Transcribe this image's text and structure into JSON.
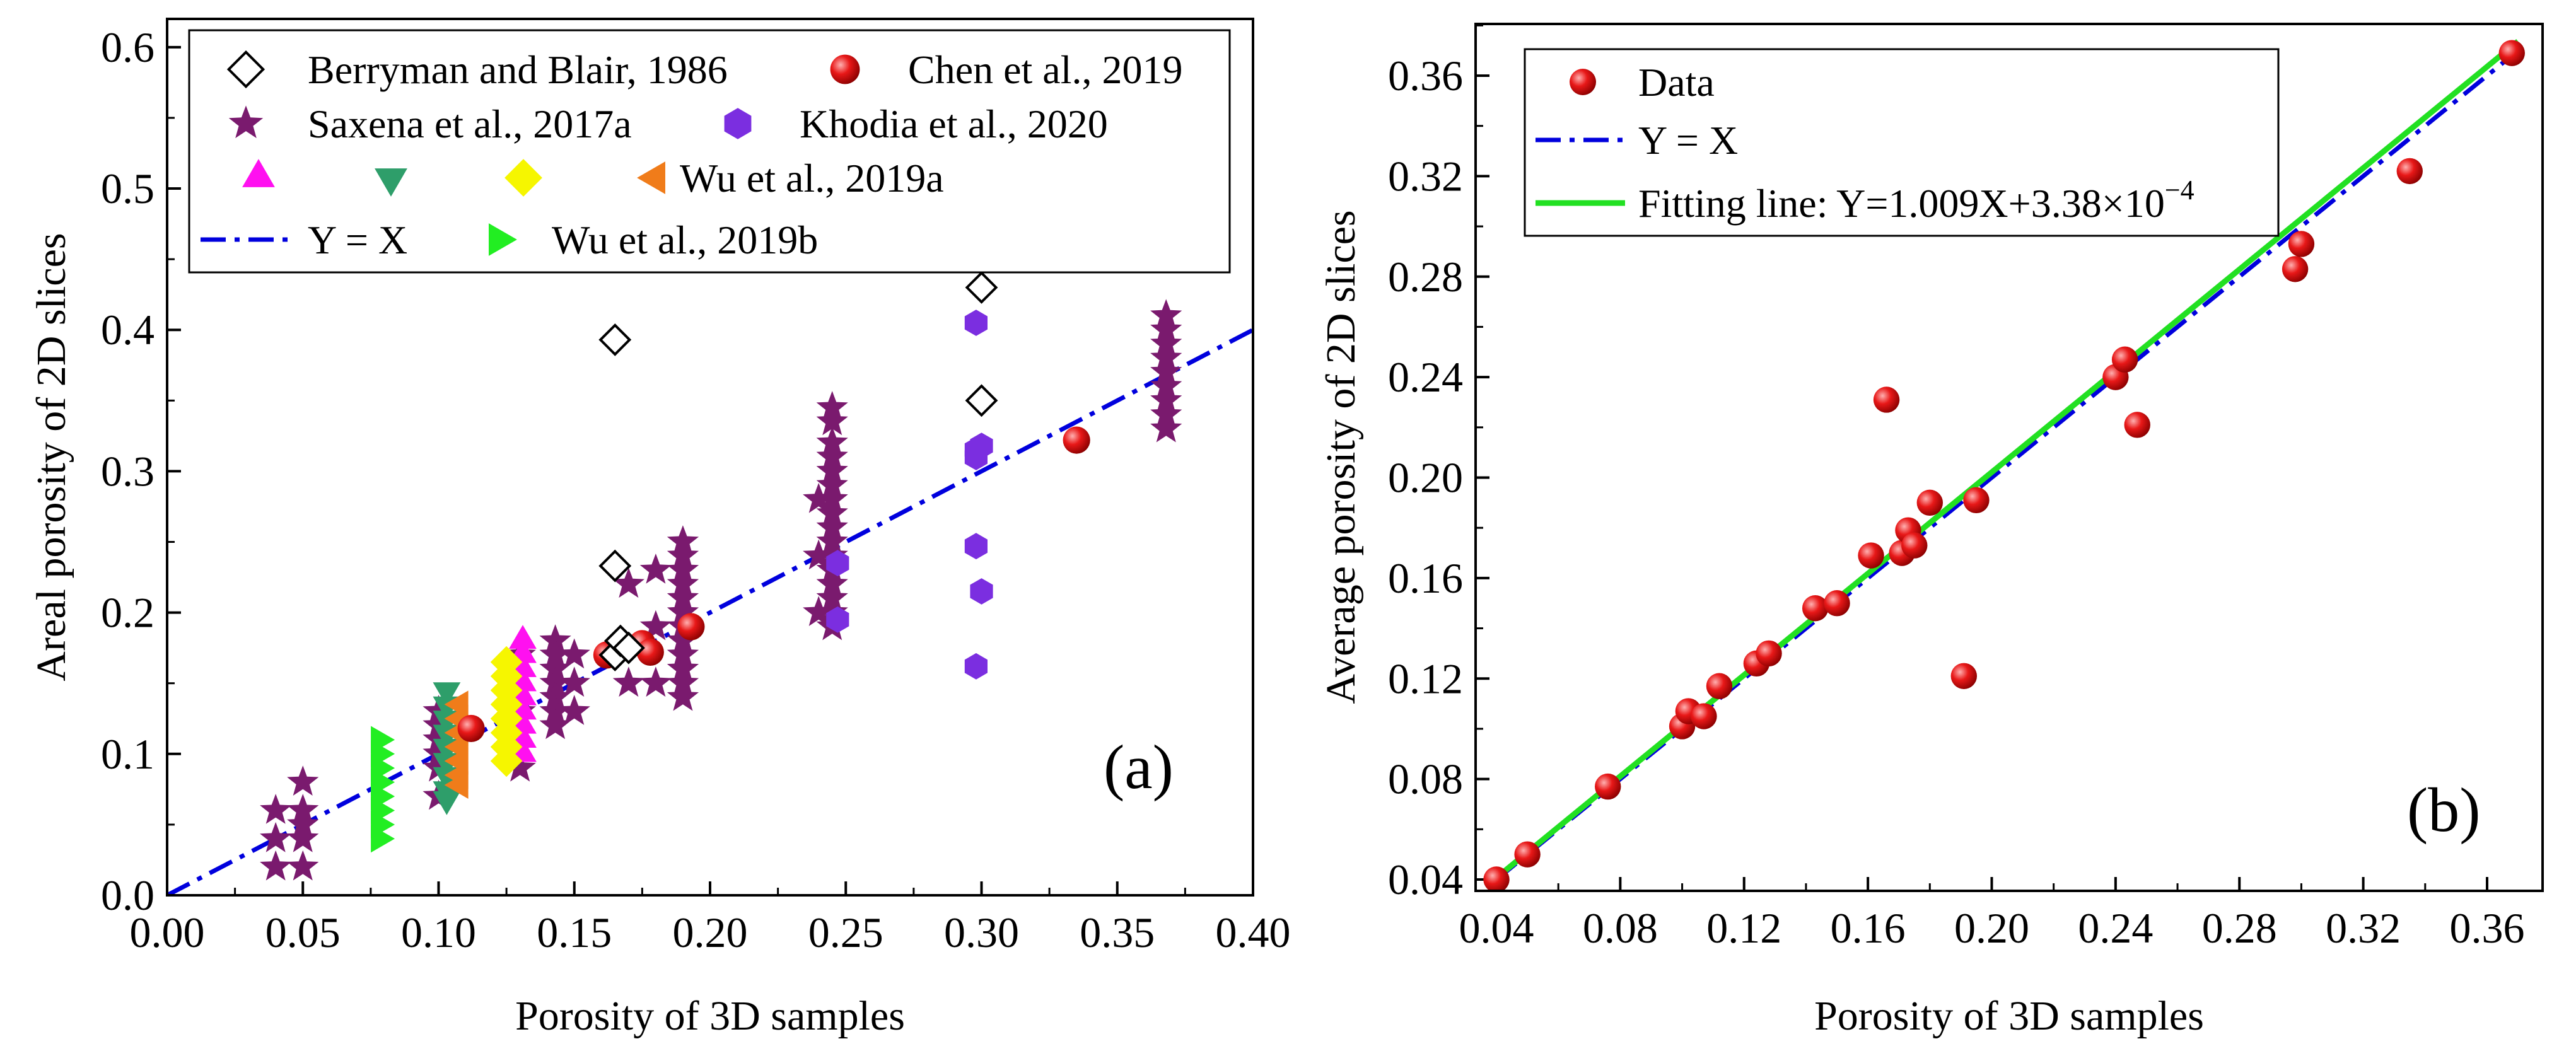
{
  "chart_data": [
    {
      "panel": "a",
      "type": "scatter",
      "xlabel": "Porosity of 3D samples",
      "ylabel": "Areal porosity of 2D slices",
      "panel_label": "(a)",
      "xlim": [
        0,
        0.4
      ],
      "ylim": [
        0,
        0.62
      ],
      "xticks": [
        "0.00",
        "0.05",
        "0.10",
        "0.15",
        "0.20",
        "0.25",
        "0.30",
        "0.35",
        "0.40"
      ],
      "yticks": [
        "0.0",
        "0.1",
        "0.2",
        "0.3",
        "0.4",
        "0.5",
        "0.6"
      ],
      "legend_position": "top",
      "series": [
        {
          "name": "Berryman and Blair, 1986",
          "marker": "diamond-open",
          "color": "#000000",
          "points": [
            [
              0.165,
              0.393
            ],
            [
              0.3,
              0.43
            ],
            [
              0.3,
              0.35
            ],
            [
              0.165,
              0.233
            ],
            [
              0.165,
              0.17
            ],
            [
              0.167,
              0.18
            ],
            [
              0.17,
              0.175
            ]
          ]
        },
        {
          "name": "Chen et al., 2019",
          "marker": "sphere",
          "color": "#e01010",
          "points": [
            [
              0.335,
              0.322
            ],
            [
              0.193,
              0.19
            ],
            [
              0.175,
              0.178
            ],
            [
              0.178,
              0.172
            ],
            [
              0.162,
              0.17
            ],
            [
              0.112,
              0.118
            ]
          ]
        },
        {
          "name": "Saxena et al., 2017a",
          "marker": "star",
          "color": "#7a1a6e",
          "points": [
            [
              0.04,
              0.06
            ],
            [
              0.04,
              0.04
            ],
            [
              0.04,
              0.02
            ],
            [
              0.05,
              0.08
            ],
            [
              0.05,
              0.06
            ],
            [
              0.05,
              0.05
            ],
            [
              0.05,
              0.04
            ],
            [
              0.05,
              0.02
            ],
            [
              0.1,
              0.13
            ],
            [
              0.1,
              0.12
            ],
            [
              0.1,
              0.11
            ],
            [
              0.1,
              0.1
            ],
            [
              0.1,
              0.09
            ],
            [
              0.1,
              0.07
            ],
            [
              0.13,
              0.17
            ],
            [
              0.13,
              0.13
            ],
            [
              0.13,
              0.09
            ],
            [
              0.143,
              0.18
            ],
            [
              0.143,
              0.17
            ],
            [
              0.143,
              0.16
            ],
            [
              0.143,
              0.15
            ],
            [
              0.143,
              0.14
            ],
            [
              0.143,
              0.13
            ],
            [
              0.143,
              0.12
            ],
            [
              0.15,
              0.17
            ],
            [
              0.15,
              0.15
            ],
            [
              0.15,
              0.13
            ],
            [
              0.17,
              0.22
            ],
            [
              0.17,
              0.15
            ],
            [
              0.18,
              0.23
            ],
            [
              0.18,
              0.19
            ],
            [
              0.18,
              0.15
            ],
            [
              0.19,
              0.25
            ],
            [
              0.19,
              0.24
            ],
            [
              0.19,
              0.23
            ],
            [
              0.19,
              0.22
            ],
            [
              0.19,
              0.21
            ],
            [
              0.19,
              0.2
            ],
            [
              0.19,
              0.19
            ],
            [
              0.19,
              0.18
            ],
            [
              0.19,
              0.17
            ],
            [
              0.19,
              0.16
            ],
            [
              0.19,
              0.15
            ],
            [
              0.19,
              0.14
            ],
            [
              0.24,
              0.28
            ],
            [
              0.24,
              0.24
            ],
            [
              0.24,
              0.2
            ],
            [
              0.245,
              0.345
            ],
            [
              0.245,
              0.335
            ],
            [
              0.245,
              0.32
            ],
            [
              0.245,
              0.31
            ],
            [
              0.245,
              0.3
            ],
            [
              0.245,
              0.29
            ],
            [
              0.245,
              0.28
            ],
            [
              0.245,
              0.27
            ],
            [
              0.245,
              0.26
            ],
            [
              0.245,
              0.25
            ],
            [
              0.245,
              0.24
            ],
            [
              0.245,
              0.23
            ],
            [
              0.245,
              0.22
            ],
            [
              0.245,
              0.21
            ],
            [
              0.245,
              0.2
            ],
            [
              0.245,
              0.19
            ],
            [
              0.368,
              0.41
            ],
            [
              0.368,
              0.4
            ],
            [
              0.368,
              0.39
            ],
            [
              0.368,
              0.38
            ],
            [
              0.368,
              0.37
            ],
            [
              0.368,
              0.36
            ],
            [
              0.368,
              0.35
            ],
            [
              0.368,
              0.34
            ],
            [
              0.368,
              0.33
            ]
          ]
        },
        {
          "name": "Khodia et al., 2020",
          "marker": "hexagon",
          "color": "#7b2ee0",
          "points": [
            [
              0.298,
              0.405
            ],
            [
              0.298,
              0.315
            ],
            [
              0.298,
              0.31
            ],
            [
              0.3,
              0.318
            ],
            [
              0.298,
              0.247
            ],
            [
              0.3,
              0.215
            ],
            [
              0.298,
              0.162
            ],
            [
              0.247,
              0.235
            ],
            [
              0.247,
              0.195
            ]
          ]
        },
        {
          "name": "",
          "marker": "triangle-up",
          "color": "#ff10f0",
          "points": [
            [
              0.131,
              0.18
            ],
            [
              0.131,
              0.17
            ],
            [
              0.131,
              0.16
            ],
            [
              0.131,
              0.15
            ],
            [
              0.131,
              0.14
            ],
            [
              0.131,
              0.13
            ],
            [
              0.131,
              0.12
            ],
            [
              0.131,
              0.11
            ],
            [
              0.131,
              0.1
            ]
          ]
        },
        {
          "name": "",
          "marker": "triangle-down",
          "color": "#2e9e6a",
          "points": [
            [
              0.103,
              0.145
            ],
            [
              0.103,
              0.135
            ],
            [
              0.103,
              0.125
            ],
            [
              0.103,
              0.115
            ],
            [
              0.103,
              0.105
            ],
            [
              0.103,
              0.095
            ],
            [
              0.103,
              0.085
            ],
            [
              0.103,
              0.075
            ],
            [
              0.103,
              0.068
            ]
          ]
        },
        {
          "name": "",
          "marker": "diamond",
          "color": "#f6f600",
          "points": [
            [
              0.125,
              0.165
            ],
            [
              0.125,
              0.155
            ],
            [
              0.125,
              0.145
            ],
            [
              0.125,
              0.135
            ],
            [
              0.125,
              0.125
            ],
            [
              0.125,
              0.115
            ],
            [
              0.125,
              0.105
            ],
            [
              0.125,
              0.095
            ]
          ]
        },
        {
          "name": "Wu et al., 2019a",
          "marker": "triangle-left",
          "color": "#f07c1a",
          "points": [
            [
              0.108,
              0.135
            ],
            [
              0.108,
              0.125
            ],
            [
              0.108,
              0.115
            ],
            [
              0.108,
              0.105
            ],
            [
              0.108,
              0.095
            ],
            [
              0.108,
              0.085
            ],
            [
              0.108,
              0.078
            ]
          ]
        },
        {
          "name": "Wu et al., 2019b",
          "marker": "triangle-right",
          "color": "#22ee22",
          "points": [
            [
              0.078,
              0.11
            ],
            [
              0.078,
              0.1
            ],
            [
              0.078,
              0.09
            ],
            [
              0.078,
              0.08
            ],
            [
              0.078,
              0.07
            ],
            [
              0.078,
              0.06
            ],
            [
              0.078,
              0.05
            ],
            [
              0.078,
              0.04
            ]
          ]
        }
      ],
      "reference_line": {
        "name": "Y = X",
        "style": "dash-dot",
        "color": "#0000dd",
        "x": [
          0,
          0.4
        ],
        "y": [
          0,
          0.4
        ]
      }
    },
    {
      "panel": "b",
      "type": "scatter",
      "xlabel": "Porosity of 3D samples",
      "ylabel": "Average porosity of 2D slices",
      "panel_label": "(b)",
      "xlim": [
        0.04,
        0.376
      ],
      "ylim": [
        0.03,
        0.38
      ],
      "xticks": [
        "0.04",
        "0.08",
        "0.12",
        "0.16",
        "0.20",
        "0.24",
        "0.28",
        "0.32",
        "0.36"
      ],
      "yticks": [
        "0.04",
        "0.08",
        "0.12",
        "0.16",
        "0.20",
        "0.24",
        "0.28",
        "0.32",
        "0.36"
      ],
      "legend_position": "top-left",
      "series": [
        {
          "name": "Data",
          "marker": "sphere",
          "color": "#e01010",
          "points": [
            [
              0.04,
              0.04
            ],
            [
              0.05,
              0.05
            ],
            [
              0.076,
              0.077
            ],
            [
              0.1,
              0.101
            ],
            [
              0.102,
              0.107
            ],
            [
              0.107,
              0.105
            ],
            [
              0.112,
              0.117
            ],
            [
              0.124,
              0.126
            ],
            [
              0.128,
              0.13
            ],
            [
              0.143,
              0.148
            ],
            [
              0.15,
              0.15
            ],
            [
              0.161,
              0.169
            ],
            [
              0.166,
              0.231
            ],
            [
              0.171,
              0.17
            ],
            [
              0.173,
              0.179
            ],
            [
              0.175,
              0.173
            ],
            [
              0.18,
              0.19
            ],
            [
              0.191,
              0.121
            ],
            [
              0.195,
              0.191
            ],
            [
              0.24,
              0.24
            ],
            [
              0.243,
              0.247
            ],
            [
              0.247,
              0.221
            ],
            [
              0.298,
              0.283
            ],
            [
              0.3,
              0.293
            ],
            [
              0.335,
              0.322
            ],
            [
              0.368,
              0.369
            ]
          ]
        }
      ],
      "reference_line": {
        "name": "Y = X",
        "style": "dash-dot",
        "color": "#0000dd",
        "x": [
          0.04,
          0.37
        ],
        "y": [
          0.04,
          0.37
        ]
      },
      "fit_line": {
        "name": "Fitting line: Y=1.009X+3.38×10",
        "exponent": "−4",
        "slope": 1.009,
        "intercept": 0.000338,
        "color": "#22e022",
        "x": [
          0.04,
          0.37
        ]
      }
    }
  ]
}
